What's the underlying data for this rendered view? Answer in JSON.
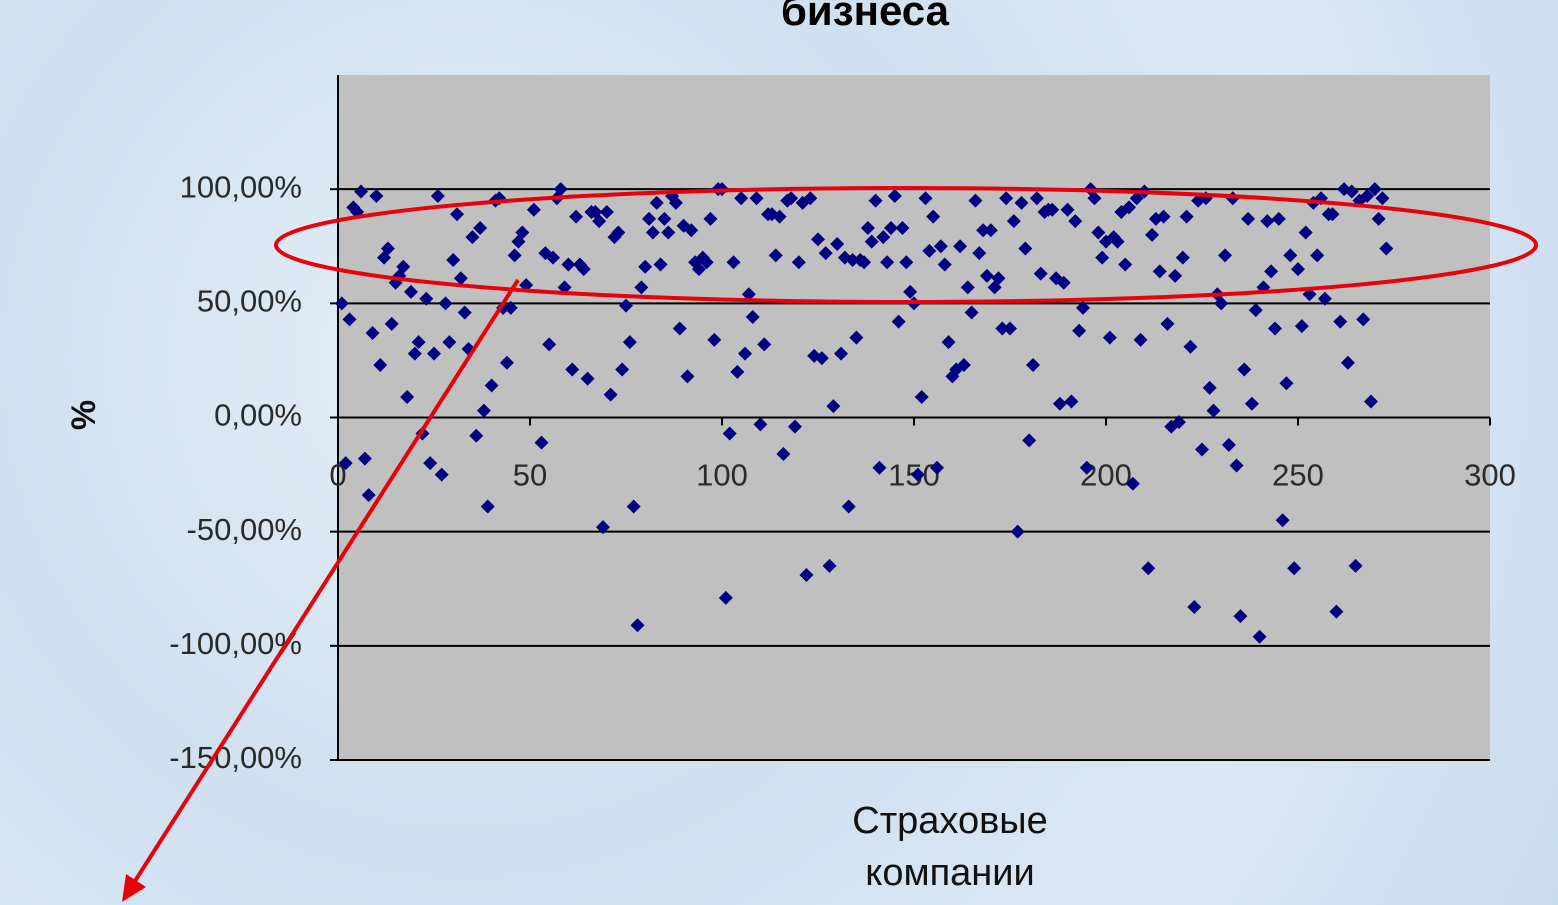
{
  "chart_data": {
    "type": "scatter",
    "title": "бизнеса",
    "y_label": "%",
    "x_label": "Страховые компании",
    "color": "#000080",
    "plot_background": "#c0c0c0",
    "grid": true,
    "xlim": [
      0,
      300
    ],
    "xticks": [
      0,
      50,
      100,
      150,
      200,
      250,
      300
    ],
    "ylim": [
      -150,
      150
    ],
    "yticks": [
      {
        "value": -150,
        "label": "-150,00%"
      },
      {
        "value": -100,
        "label": "-100,00%"
      },
      {
        "value": -50,
        "label": "-50,00%"
      },
      {
        "value": 0,
        "label": "0,00%"
      },
      {
        "value": 50,
        "label": "50,00%"
      },
      {
        "value": 100,
        "label": "100,00%"
      }
    ],
    "x": [
      1,
      2,
      3,
      4,
      5,
      6,
      7,
      8,
      9,
      10,
      11,
      12,
      13,
      14,
      15,
      16,
      17,
      18,
      19,
      20,
      21,
      22,
      23,
      24,
      25,
      26,
      27,
      28,
      29,
      30,
      31,
      32,
      33,
      34,
      35,
      36,
      37,
      38,
      39,
      40,
      41,
      42,
      43,
      44,
      45,
      46,
      47,
      48,
      49,
      51,
      53,
      54,
      55,
      56,
      57,
      58,
      59,
      60,
      61,
      62,
      63,
      64,
      65,
      66,
      67,
      68,
      69,
      70,
      71,
      72,
      73,
      74,
      75,
      76,
      77,
      78,
      79,
      80,
      81,
      82,
      83,
      84,
      85,
      86,
      87,
      88,
      89,
      90,
      91,
      92,
      93,
      94,
      95,
      96,
      97,
      98,
      99,
      100,
      101,
      102,
      103,
      104,
      105,
      106,
      107,
      108,
      109,
      110,
      111,
      112,
      113,
      114,
      115,
      116,
      117,
      118,
      119,
      120,
      121,
      122,
      123,
      124,
      125,
      126,
      127,
      128,
      129,
      130,
      131,
      132,
      133,
      134,
      135,
      136,
      137,
      138,
      139,
      140,
      141,
      142,
      143,
      144,
      145,
      146,
      147,
      148,
      149,
      150,
      151,
      152,
      153,
      154,
      155,
      156,
      157,
      158,
      159,
      160,
      161,
      162,
      163,
      164,
      165,
      166,
      167,
      168,
      169,
      170,
      171,
      172,
      173,
      174,
      175,
      176,
      177,
      178,
      179,
      180,
      181,
      182,
      183,
      184,
      185,
      186,
      187,
      188,
      189,
      190,
      191,
      192,
      193,
      194,
      195,
      196,
      197,
      198,
      199,
      200,
      201,
      202,
      203,
      204,
      205,
      206,
      207,
      208,
      209,
      210,
      211,
      212,
      213,
      214,
      215,
      216,
      217,
      218,
      219,
      220,
      221,
      222,
      223,
      224,
      225,
      226,
      227,
      228,
      229,
      230,
      231,
      232,
      233,
      234,
      235,
      236,
      237,
      238,
      239,
      240,
      241,
      242,
      243,
      244,
      245,
      246,
      247,
      248,
      249,
      250,
      251,
      252,
      253,
      254,
      255,
      256,
      257,
      258,
      259,
      260,
      261,
      262,
      263,
      264,
      265,
      266,
      267,
      268,
      269,
      270,
      271,
      272,
      273
    ],
    "values": [
      50,
      -20,
      43,
      92,
      90,
      99,
      -18,
      -34,
      37,
      97,
      23,
      70,
      74,
      41,
      59,
      62,
      66,
      9,
      55,
      28,
      33,
      -7,
      52,
      -20,
      28,
      97,
      -25,
      50,
      33,
      69,
      89,
      61,
      46,
      30,
      79,
      -8,
      83,
      3,
      -39,
      14,
      95,
      96,
      48,
      24,
      48,
      71,
      77,
      81,
      58,
      91,
      -11,
      72,
      32,
      70,
      96,
      100,
      57,
      67,
      21,
      88,
      67,
      65,
      17,
      90,
      90,
      86,
      -48,
      90,
      10,
      79,
      81,
      21,
      49,
      33,
      -39,
      -91,
      57,
      66,
      87,
      81,
      94,
      67,
      87,
      81,
      97,
      94,
      39,
      84,
      18,
      82,
      68,
      65,
      70,
      68,
      87,
      34,
      100,
      100,
      -79,
      -7,
      68,
      20,
      96,
      28,
      54,
      44,
      96,
      -3,
      32,
      89,
      89,
      71,
      88,
      -16,
      95,
      96,
      -4,
      68,
      94,
      -69,
      96,
      27,
      78,
      26,
      72,
      -65,
      5,
      76,
      28,
      70,
      -39,
      69,
      35,
      69,
      68,
      83,
      77,
      95,
      -22,
      79,
      68,
      83,
      97,
      42,
      83,
      68,
      55,
      50,
      -25,
      9,
      96,
      73,
      88,
      -22,
      75,
      67,
      33,
      18,
      21,
      75,
      23,
      57,
      46,
      95,
      72,
      82,
      62,
      82,
      57,
      61,
      39,
      96,
      39,
      86,
      -50,
      94,
      74,
      -10,
      23,
      96,
      63,
      90,
      91,
      91,
      61,
      6,
      59,
      91,
      7,
      86,
      38,
      48,
      -22,
      100,
      96,
      81,
      70,
      77,
      35,
      79,
      77,
      90,
      67,
      92,
      -29,
      96,
      34,
      99,
      -66,
      80,
      87,
      64,
      88,
      41,
      -4,
      62,
      -2,
      70,
      88,
      31,
      -83,
      95,
      -14,
      96,
      13,
      3,
      54,
      50,
      71,
      -12,
      96,
      -21,
      -87,
      21,
      87,
      6,
      47,
      -96,
      57,
      86,
      64,
      39,
      87,
      -45,
      15,
      71,
      -66,
      65,
      40,
      81,
      54,
      94,
      71,
      96,
      52,
      89,
      89,
      -85,
      42,
      100,
      24,
      99,
      -65,
      95,
      43,
      97,
      7,
      100,
      87,
      96,
      74
    ]
  }
}
